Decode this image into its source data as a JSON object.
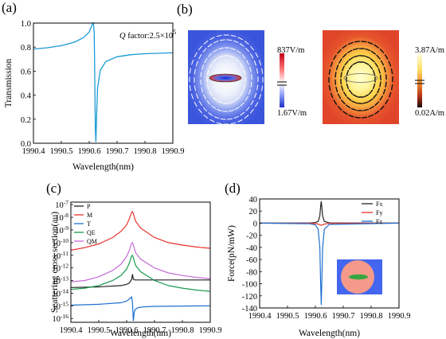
{
  "panels": {
    "a": {
      "label": "(a)"
    },
    "b": {
      "label": "(b)"
    },
    "c": {
      "label": "(c)"
    },
    "d": {
      "label": "(d)"
    }
  },
  "chart_data": [
    {
      "id": "a",
      "type": "line",
      "title": "",
      "xlabel": "Wavelength(nm)",
      "ylabel": "Transmission",
      "xlim": [
        1990.4,
        1990.9
      ],
      "ylim": [
        0.0,
        1.0
      ],
      "xticks": [
        "1990.4",
        "1990.5",
        "1990.6",
        "1990.7",
        "1990.8",
        "1990.9"
      ],
      "yticks": [
        "0.0",
        "0.2",
        "0.4",
        "0.6",
        "0.8",
        "1.0"
      ],
      "annotation": {
        "prefix": "Q",
        "text": " factor:2.5×10",
        "sup": "5"
      },
      "series": [
        {
          "color": "#1a9ad6",
          "x": [
            1990.4,
            1990.45,
            1990.5,
            1990.55,
            1990.58,
            1990.6,
            1990.61,
            1990.615,
            1990.618,
            1990.62,
            1990.622,
            1990.624,
            1990.627,
            1990.63,
            1990.64,
            1990.66,
            1990.7,
            1990.75,
            1990.8,
            1990.85,
            1990.9
          ],
          "y": [
            0.784,
            0.795,
            0.812,
            0.844,
            0.88,
            0.925,
            0.985,
            1.0,
            0.92,
            0.55,
            0.12,
            0.01,
            0.25,
            0.46,
            0.61,
            0.68,
            0.72,
            0.737,
            0.745,
            0.749,
            0.752
          ]
        }
      ]
    },
    {
      "id": "c",
      "type": "line",
      "title": "",
      "xlabel": "Wavelength(nm)",
      "ylabel": "Scattering cross section(au)",
      "yscale": "log",
      "xlim": [
        1990.4,
        1990.9
      ],
      "ylim_exponent": [
        -16,
        -7
      ],
      "xticks": [
        "1990.4",
        "1990.5",
        "1990.6",
        "1990.7",
        "1990.8",
        "1990.9"
      ],
      "yticks": [
        {
          "base": "10",
          "exp": "-7"
        },
        {
          "base": "10",
          "exp": "-8"
        },
        {
          "base": "10",
          "exp": "-9"
        },
        {
          "base": "10",
          "exp": "-10"
        },
        {
          "base": "10",
          "exp": "-11"
        },
        {
          "base": "10",
          "exp": "-12"
        },
        {
          "base": "10",
          "exp": "-13"
        },
        {
          "base": "10",
          "exp": "-14"
        },
        {
          "base": "10",
          "exp": "-15"
        },
        {
          "base": "10",
          "exp": "-16"
        }
      ],
      "legend_position": "top-left",
      "series": [
        {
          "name": "P",
          "color": "#222222",
          "x": [
            1990.4,
            1990.5,
            1990.58,
            1990.6,
            1990.61,
            1990.618,
            1990.621,
            1990.624,
            1990.63,
            1990.65,
            1990.7,
            1990.9
          ],
          "y_exp": [
            -13.55,
            -13.5,
            -13.4,
            -13.3,
            -13.2,
            -12.9,
            -12.5,
            -12.9,
            -12.95,
            -12.95,
            -12.95,
            -12.95
          ]
        },
        {
          "name": "M",
          "color": "#e8322b",
          "x": [
            1990.4,
            1990.45,
            1990.5,
            1990.55,
            1990.58,
            1990.6,
            1990.61,
            1990.618,
            1990.621,
            1990.624,
            1990.632,
            1990.65,
            1990.7,
            1990.75,
            1990.8,
            1990.85,
            1990.9
          ],
          "y_exp": [
            -10.6,
            -10.4,
            -10.1,
            -9.6,
            -9.1,
            -8.6,
            -8.1,
            -7.6,
            -7.55,
            -7.7,
            -8.3,
            -8.85,
            -9.6,
            -10.0,
            -10.2,
            -10.35,
            -10.45
          ]
        },
        {
          "name": "T",
          "color": "#1f6fd1",
          "x": [
            1990.4,
            1990.5,
            1990.58,
            1990.6,
            1990.61,
            1990.618,
            1990.621,
            1990.624,
            1990.627,
            1990.63,
            1990.64,
            1990.66,
            1990.7,
            1990.9
          ],
          "y_exp": [
            -14.95,
            -14.88,
            -14.75,
            -14.62,
            -14.45,
            -14.3,
            -14.8,
            -16.2,
            -15.6,
            -15.3,
            -15.15,
            -15.08,
            -15.04,
            -15.0
          ]
        },
        {
          "name": "QE",
          "color": "#1a9a50",
          "x": [
            1990.4,
            1990.45,
            1990.5,
            1990.55,
            1990.58,
            1990.6,
            1990.61,
            1990.618,
            1990.621,
            1990.624,
            1990.632,
            1990.65,
            1990.7,
            1990.75,
            1990.8,
            1990.85,
            1990.9
          ],
          "y_exp": [
            -13.7,
            -13.6,
            -13.4,
            -13.0,
            -12.6,
            -12.1,
            -11.6,
            -11.05,
            -11.0,
            -11.2,
            -11.8,
            -12.3,
            -13.0,
            -13.4,
            -13.6,
            -13.75,
            -13.85
          ]
        },
        {
          "name": "QM",
          "color": "#c66bd8",
          "x": [
            1990.4,
            1990.45,
            1990.5,
            1990.55,
            1990.58,
            1990.6,
            1990.61,
            1990.618,
            1990.621,
            1990.624,
            1990.632,
            1990.65,
            1990.7,
            1990.75,
            1990.8,
            1990.85,
            1990.9
          ],
          "y_exp": [
            -13.1,
            -13.0,
            -12.7,
            -12.2,
            -11.7,
            -11.1,
            -10.6,
            -10.05,
            -10.0,
            -10.2,
            -10.8,
            -11.3,
            -12.0,
            -12.4,
            -12.6,
            -12.75,
            -12.85
          ]
        }
      ]
    },
    {
      "id": "d",
      "type": "line",
      "title": "",
      "xlabel": "Wavelength(nm)",
      "ylabel": "Force(pN/mW)",
      "xlim": [
        1990.4,
        1990.9
      ],
      "ylim": [
        -140,
        40
      ],
      "xticks": [
        "1990.4",
        "1990.5",
        "1990.6",
        "1990.7",
        "1990.8",
        "1990.9"
      ],
      "yticks": [
        "40",
        "20",
        "0",
        "-20",
        "-40",
        "-60",
        "-80",
        "-100",
        "-120",
        "-140"
      ],
      "legend_position": "top-right",
      "series": [
        {
          "name": "Fx",
          "color": "#222222",
          "x": [
            1990.4,
            1990.58,
            1990.6,
            1990.61,
            1990.616,
            1990.619,
            1990.621,
            1990.623,
            1990.626,
            1990.632,
            1990.65,
            1990.9
          ],
          "y": [
            0,
            0.3,
            1.0,
            3.0,
            12.0,
            28.0,
            36.0,
            28.0,
            12.0,
            3.0,
            0.5,
            0
          ]
        },
        {
          "name": "Fy",
          "color": "#e8322b",
          "x": [
            1990.4,
            1990.58,
            1990.6,
            1990.61,
            1990.618,
            1990.621,
            1990.624,
            1990.632,
            1990.65,
            1990.9
          ],
          "y": [
            0,
            -0.2,
            -0.6,
            -1.5,
            -3.0,
            -3.5,
            -3.0,
            -1.5,
            -0.4,
            0
          ]
        },
        {
          "name": "Fz",
          "color": "#1f6fd1",
          "x": [
            1990.4,
            1990.58,
            1990.6,
            1990.61,
            1990.616,
            1990.619,
            1990.621,
            1990.623,
            1990.626,
            1990.632,
            1990.65,
            1990.9
          ],
          "y": [
            0,
            -1.0,
            -3.0,
            -10.0,
            -40.0,
            -100.0,
            -135.0,
            -100.0,
            -40.0,
            -10.0,
            -2.0,
            0
          ]
        }
      ]
    }
  ],
  "field_maps": {
    "left": {
      "max_label": "837V/m",
      "min_label": "1.67V/m"
    },
    "right": {
      "max_label": "3.87A/m",
      "min_label": "0.02A/m"
    }
  },
  "colors": {
    "e_field_background": "#3d5be0",
    "h_field_background": "#e24a2a",
    "inset_background": "#4466ee",
    "inset_disk": "#f59a8a",
    "inset_ellipse": "#3aa640"
  }
}
